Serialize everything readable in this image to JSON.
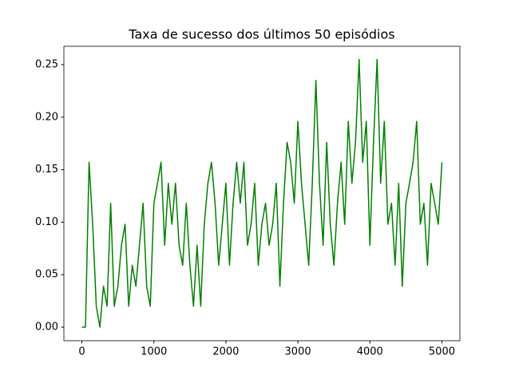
{
  "chart_data": {
    "type": "line",
    "title": "Taxa de sucesso dos últimos 50 episódios",
    "x": [
      0,
      50,
      100,
      150,
      200,
      250,
      300,
      350,
      400,
      450,
      500,
      550,
      600,
      650,
      700,
      750,
      800,
      850,
      900,
      950,
      1000,
      1050,
      1100,
      1150,
      1200,
      1250,
      1300,
      1350,
      1400,
      1450,
      1500,
      1550,
      1600,
      1650,
      1700,
      1750,
      1800,
      1850,
      1900,
      1950,
      2000,
      2050,
      2100,
      2150,
      2200,
      2250,
      2300,
      2350,
      2400,
      2450,
      2500,
      2550,
      2600,
      2650,
      2700,
      2750,
      2800,
      2850,
      2900,
      2950,
      3000,
      3050,
      3100,
      3150,
      3200,
      3250,
      3300,
      3350,
      3400,
      3450,
      3500,
      3550,
      3600,
      3650,
      3700,
      3750,
      3800,
      3850,
      3900,
      3950,
      4000,
      4050,
      4100,
      4150,
      4200,
      4250,
      4300,
      4350,
      4400,
      4450,
      4500,
      4550,
      4600,
      4650,
      4700,
      4750,
      4800,
      4850,
      4900,
      4950,
      5000
    ],
    "series": [
      {
        "color": "#008000",
        "values": [
          0,
          0,
          0.157,
          0.098,
          0.02,
          0,
          0.039,
          0.02,
          0.118,
          0.02,
          0.039,
          0.078,
          0.098,
          0.02,
          0.059,
          0.039,
          0.078,
          0.118,
          0.039,
          0.02,
          0.118,
          0.137,
          0.157,
          0.078,
          0.137,
          0.098,
          0.137,
          0.078,
          0.059,
          0.118,
          0.059,
          0.02,
          0.078,
          0.02,
          0.098,
          0.137,
          0.157,
          0.118,
          0.059,
          0.098,
          0.137,
          0.059,
          0.118,
          0.157,
          0.118,
          0.157,
          0.078,
          0.098,
          0.137,
          0.059,
          0.098,
          0.118,
          0.078,
          0.098,
          0.137,
          0.039,
          0.118,
          0.176,
          0.157,
          0.118,
          0.196,
          0.137,
          0.098,
          0.059,
          0.137,
          0.235,
          0.137,
          0.078,
          0.176,
          0.098,
          0.059,
          0.118,
          0.157,
          0.098,
          0.196,
          0.137,
          0.176,
          0.255,
          0.157,
          0.196,
          0.078,
          0.176,
          0.255,
          0.137,
          0.196,
          0.098,
          0.118,
          0.059,
          0.137,
          0.039,
          0.118,
          0.137,
          0.157,
          0.196,
          0.098,
          0.118,
          0.059,
          0.137,
          0.118,
          0.098,
          0.157
        ]
      }
    ],
    "xlim": [
      -250,
      5250
    ],
    "xticks": [
      0,
      1000,
      2000,
      3000,
      4000,
      5000
    ],
    "ylim": [
      -0.0129,
      0.2675
    ],
    "yticks": [
      {
        "value": 0,
        "label": "0.00"
      },
      {
        "value": 0.05,
        "label": "0.05"
      },
      {
        "value": 0.1,
        "label": "0.10"
      },
      {
        "value": 0.15,
        "label": "0.15"
      },
      {
        "value": 0.2,
        "label": "0.20"
      },
      {
        "value": 0.25,
        "label": "0.25"
      }
    ],
    "grid": false
  }
}
